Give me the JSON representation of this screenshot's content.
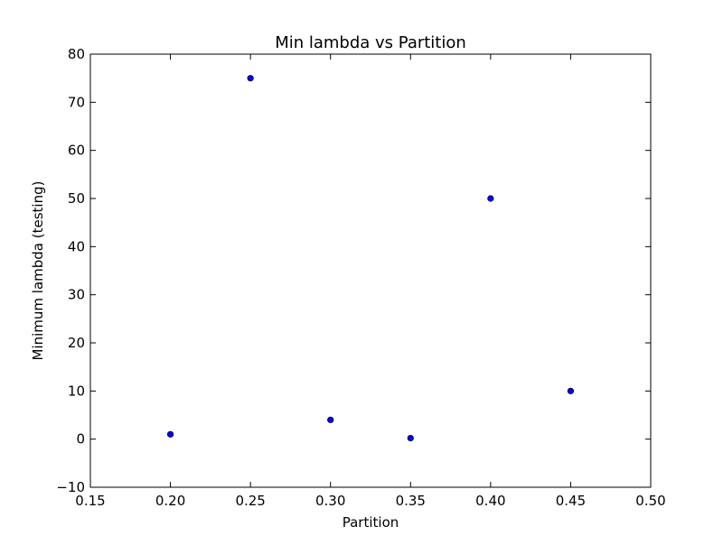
{
  "chart_data": {
    "type": "scatter",
    "title": "Min lambda vs Partition",
    "xlabel": "Partition",
    "ylabel": "Minimum lambda (testing)",
    "xlim": [
      0.15,
      0.5
    ],
    "ylim": [
      -10,
      80
    ],
    "xticks": [
      "0.15",
      "0.20",
      "0.25",
      "0.30",
      "0.35",
      "0.40",
      "0.45",
      "0.50"
    ],
    "yticks": [
      "−10",
      "0",
      "10",
      "20",
      "30",
      "40",
      "50",
      "60",
      "70",
      "80"
    ],
    "xtick_values": [
      0.15,
      0.2,
      0.25,
      0.3,
      0.35,
      0.4,
      0.45,
      0.5
    ],
    "ytick_values": [
      -10,
      0,
      10,
      20,
      30,
      40,
      50,
      60,
      70,
      80
    ],
    "grid": false,
    "series": [
      {
        "color": "#0000ff",
        "points": [
          {
            "x": 0.2,
            "y": 1
          },
          {
            "x": 0.25,
            "y": 75
          },
          {
            "x": 0.3,
            "y": 4
          },
          {
            "x": 0.35,
            "y": 0.2
          },
          {
            "x": 0.4,
            "y": 50
          },
          {
            "x": 0.45,
            "y": 10
          }
        ]
      }
    ]
  }
}
